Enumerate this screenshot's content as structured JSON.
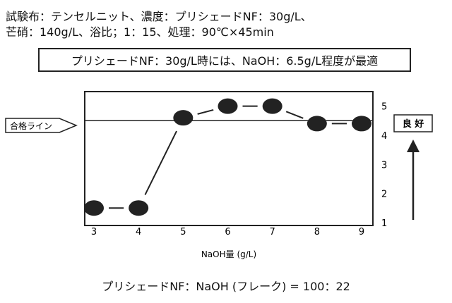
{
  "conditions": {
    "line1": "試験布：テンセルニット、濃度：プリシェードNF：30g/L、",
    "line2": "芒硝：140g/L、浴比；1：15、処理：90℃×45min"
  },
  "note": "プリシェードNF：30g/L時には、NaOH：6.5g/L程度が最適",
  "ratio_label": "プリシェードNF：NaOH (フレーク) = 100：22",
  "chart_data": {
    "type": "line",
    "x": [
      3,
      4,
      5,
      6,
      7,
      8,
      9
    ],
    "y": [
      1.5,
      1.5,
      4.6,
      5.0,
      5.0,
      4.4,
      4.4
    ],
    "x_ticks": [
      "3",
      "4",
      "5",
      "6",
      "7",
      "8",
      "9"
    ],
    "y_ticks": [
      "1",
      "2",
      "3",
      "4",
      "5"
    ],
    "xlabel": "NaOH量 (g/L)",
    "xlim": [
      3,
      9
    ],
    "ylim": [
      0.9,
      5.5
    ],
    "pass_line": {
      "label": "合格ライン",
      "value": 4.5
    },
    "quality_label": "良 好",
    "marker_color": "#222222",
    "grid": false
  }
}
